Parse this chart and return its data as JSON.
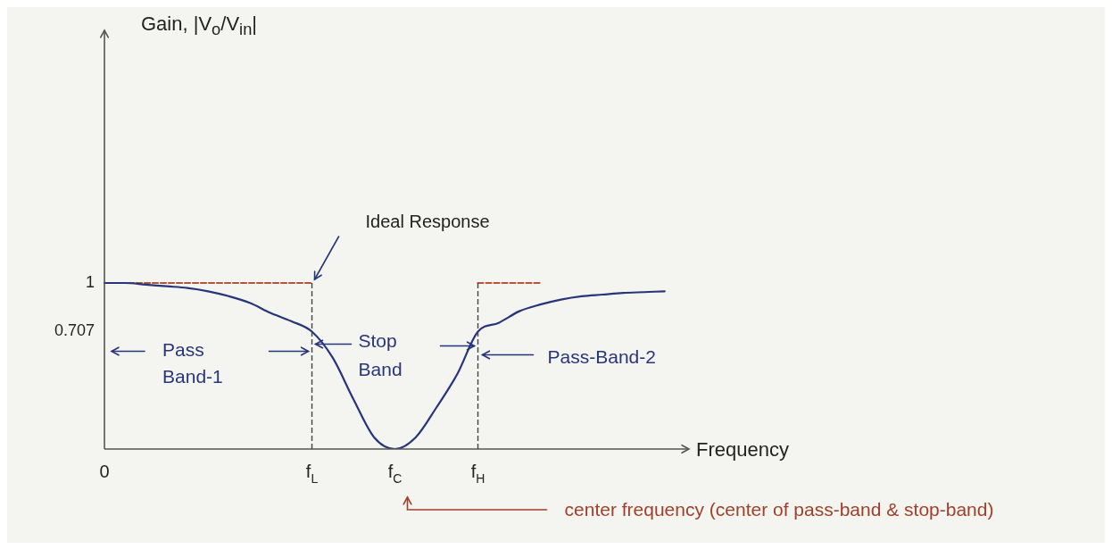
{
  "chart_data": {
    "type": "line",
    "ylabel": "Gain, |V$_{o}$/V$_{in}$|",
    "xlabel": "Frequency",
    "categories": [
      "0",
      null,
      null,
      null,
      null,
      null,
      null,
      null,
      null,
      null,
      "f$_{L}$",
      null,
      null,
      null,
      "f$_{C}$",
      null,
      null,
      null,
      "f$_{H}$",
      null,
      null,
      null,
      null,
      null,
      null,
      null,
      null,
      null,
      null
    ],
    "series": [
      {
        "color": "#27357a",
        "values": [
          1,
          1,
          0.99,
          0.98,
          0.97,
          0.95,
          0.92,
          0.88,
          0.82,
          0.77,
          0.707,
          0.55,
          0.3,
          0.07,
          0,
          0.07,
          0.25,
          0.45,
          0.707,
          0.76,
          0.83,
          0.87,
          0.9,
          0.92,
          0.93,
          0.94,
          0.945,
          0.95,
          null
        ]
      },
      {
        "color": "#b5553a",
        "line_style": "dashed",
        "values": [
          1,
          1,
          1,
          1,
          1,
          1,
          1,
          1,
          1,
          1,
          1,
          null,
          null,
          null,
          null,
          null,
          null,
          null,
          1,
          1,
          1,
          1,
          null,
          null,
          null,
          null,
          null,
          null,
          null
        ]
      }
    ],
    "ylim": [
      0,
      2.5
    ],
    "yticks": [
      0.707,
      1
    ],
    "marker": "none",
    "grid": false,
    "legend": false,
    "ref_lines": [
      {
        "axis": "x",
        "value": "f$_{L}$",
        "color": "#444444",
        "line_style": "dashed"
      },
      {
        "axis": "x",
        "value": "f$_{H}$",
        "color": "#444444",
        "line_style": "dashed"
      }
    ],
    "annotations": [
      "Ideal Response",
      "Pass Band-1",
      "Stop Band",
      "Pass-Band-2",
      "center frequency (center of pass-band & stop-band)"
    ]
  }
}
